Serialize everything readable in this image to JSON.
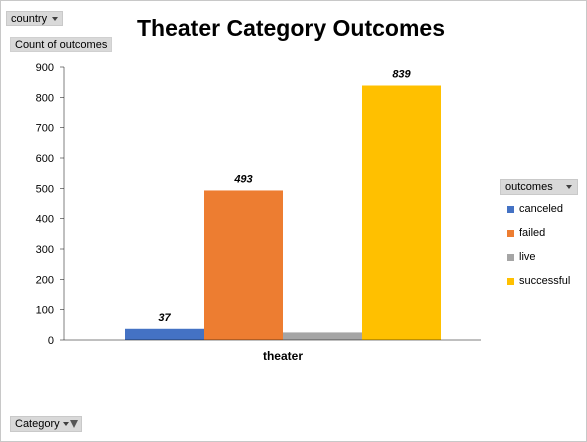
{
  "filters": {
    "country_label": "country",
    "category_label": "Category"
  },
  "value_field_label": "Count of outcomes",
  "legend": {
    "header": "outcomes",
    "items": [
      {
        "label": "canceled",
        "color": "#4472c4"
      },
      {
        "label": "failed",
        "color": "#ed7d31"
      },
      {
        "label": "live",
        "color": "#a5a5a5"
      },
      {
        "label": "successful",
        "color": "#ffc000"
      }
    ]
  },
  "chart_data": {
    "type": "bar",
    "title": "Theater Category Outcomes",
    "categories": [
      "theater"
    ],
    "series": [
      {
        "name": "canceled",
        "values": [
          37
        ],
        "color": "#4472c4",
        "label": "37"
      },
      {
        "name": "failed",
        "values": [
          493
        ],
        "color": "#ed7d31",
        "label": "493"
      },
      {
        "name": "live",
        "values": [
          25
        ],
        "color": "#a5a5a5",
        "label": ""
      },
      {
        "name": "successful",
        "values": [
          839
        ],
        "color": "#ffc000",
        "label": "839"
      }
    ],
    "ylim": [
      0,
      900
    ],
    "yticks": [
      "0",
      "100",
      "200",
      "300",
      "400",
      "500",
      "600",
      "700",
      "800",
      "900"
    ],
    "grid": false,
    "legend_position": "right"
  }
}
